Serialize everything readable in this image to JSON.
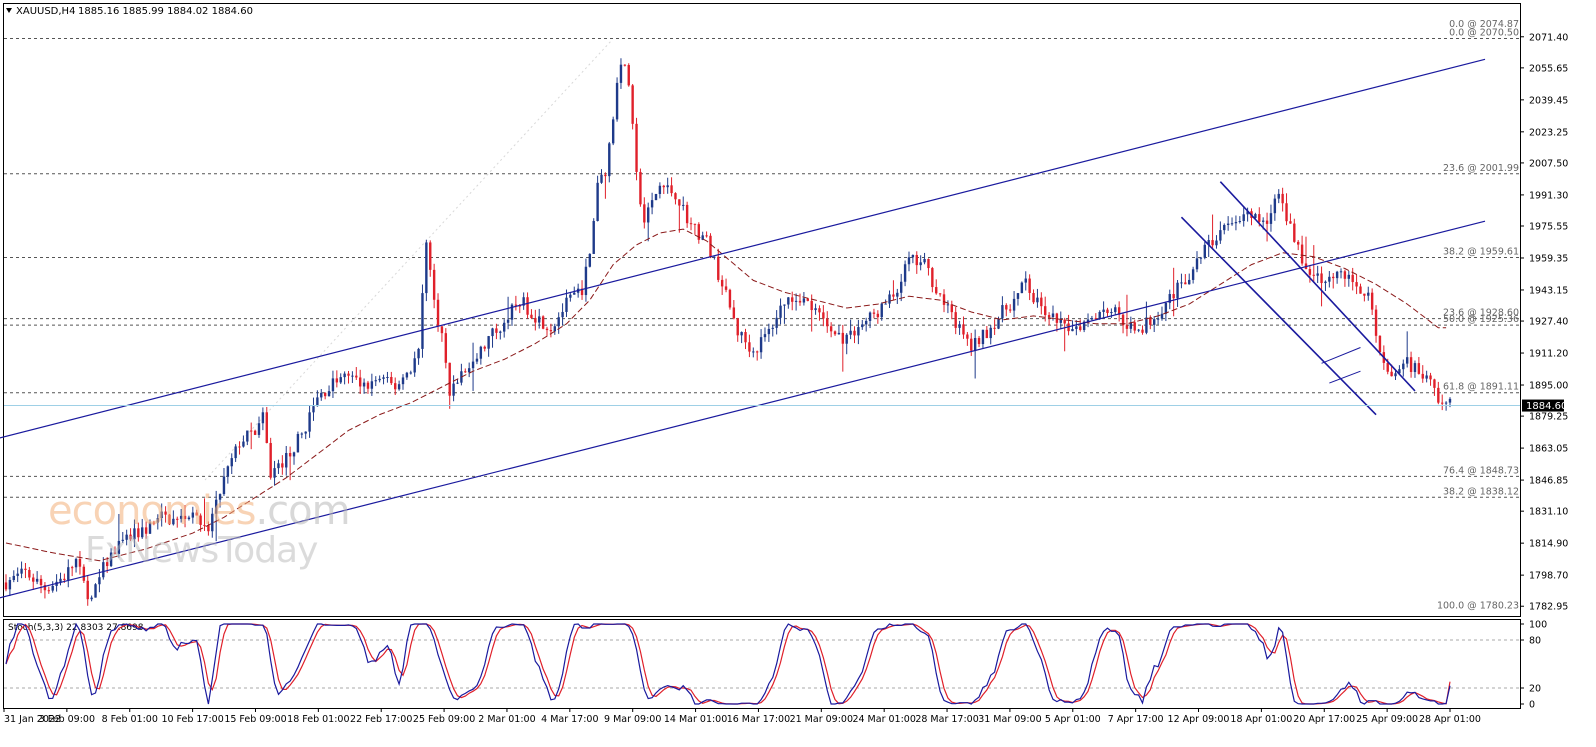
{
  "header": {
    "symbol": "XAUUSD,H4",
    "ohlc": "1885.16 1885.99 1884.02 1884.60"
  },
  "current_price": {
    "label": "1884.60",
    "value": 1884.6
  },
  "watermark": {
    "part1": "econo",
    "part2": "mies",
    "part3": ".com",
    "sub": "FxNewsToday"
  },
  "colors": {
    "bull_candle": "#1e3a8a",
    "bear_candle": "#e0202a",
    "channel_line": "#1a1a9e",
    "moving_average": "#8b1a1a",
    "stoch_main": "#1a1a9e",
    "stoch_signal": "#e0202a",
    "price_line": "#9ed0e6",
    "grid_dashed": "#555555"
  },
  "chart_data": {
    "type": "candlestick",
    "symbol": "XAUUSD",
    "timeframe": "H4",
    "y_range": [
      1778,
      2088
    ],
    "y_ticks": [
      {
        "value": 2071.4,
        "label": "2071.40"
      },
      {
        "value": 2055.65,
        "label": "2055.65"
      },
      {
        "value": 2039.45,
        "label": "2039.45"
      },
      {
        "value": 2023.25,
        "label": "2023.25"
      },
      {
        "value": 2007.5,
        "label": "2007.50"
      },
      {
        "value": 1991.3,
        "label": "1991.30"
      },
      {
        "value": 1975.55,
        "label": "1975.55"
      },
      {
        "value": 1959.35,
        "label": "1959.35"
      },
      {
        "value": 1943.15,
        "label": "1943.15"
      },
      {
        "value": 1927.4,
        "label": "1927.40"
      },
      {
        "value": 1911.2,
        "label": "1911.20"
      },
      {
        "value": 1895.0,
        "label": "1895.00"
      },
      {
        "value": 1879.25,
        "label": "1879.25"
      },
      {
        "value": 1863.05,
        "label": "1863.05"
      },
      {
        "value": 1846.85,
        "label": "1846.85"
      },
      {
        "value": 1831.1,
        "label": "1831.10"
      },
      {
        "value": 1814.9,
        "label": "1814.90"
      },
      {
        "value": 1798.7,
        "label": "1798.70"
      },
      {
        "value": 1782.95,
        "label": "1782.95"
      }
    ],
    "x_labels": [
      "31 Jan 2022",
      "3 Feb 09:00",
      "8 Feb 01:00",
      "10 Feb 17:00",
      "15 Feb 09:00",
      "18 Feb 01:00",
      "22 Feb 17:00",
      "25 Feb 09:00",
      "2 Mar 01:00",
      "4 Mar 17:00",
      "9 Mar 09:00",
      "14 Mar 01:00",
      "16 Mar 17:00",
      "21 Mar 09:00",
      "24 Mar 01:00",
      "28 Mar 17:00",
      "31 Mar 09:00",
      "5 Apr 01:00",
      "7 Apr 17:00",
      "12 Apr 09:00",
      "18 Apr 01:00",
      "20 Apr 17:00",
      "25 Apr 09:00",
      "28 Apr 01:00"
    ],
    "fib_levels": [
      {
        "label": "0.0 @ 2074.87",
        "value": 2074.87,
        "dotted_line": false
      },
      {
        "label": "0.0 @ 2070.50",
        "value": 2070.5,
        "dotted_line": true
      },
      {
        "label": "23.6 @ 2001.99",
        "value": 2001.99,
        "dotted_line": true
      },
      {
        "label": "38.2 @ 1959.61",
        "value": 1959.61,
        "dotted_line": true
      },
      {
        "label": "23.6 @ 1928.60",
        "value": 1928.6,
        "dotted_line": true
      },
      {
        "label": "50.0 @ 1925.36",
        "value": 1925.36,
        "dotted_line": true
      },
      {
        "label": "61.8 @ 1891.11",
        "value": 1891.11,
        "dotted_line": true
      },
      {
        "label": "76.4 @ 1848.73",
        "value": 1848.73,
        "dotted_line": true
      },
      {
        "label": "38.2 @ 1838.12",
        "value": 1838.12,
        "dotted_line": true
      },
      {
        "label": "100.0 @ 1780.23",
        "value": 1780.23,
        "dotted_line": false
      }
    ],
    "path": [
      [
        0,
        1795
      ],
      [
        5,
        1800
      ],
      [
        10,
        1792
      ],
      [
        15,
        1798
      ],
      [
        18,
        1806
      ],
      [
        20,
        1794
      ],
      [
        22,
        1786
      ],
      [
        25,
        1802
      ],
      [
        28,
        1812
      ],
      [
        32,
        1818
      ],
      [
        36,
        1822
      ],
      [
        40,
        1828
      ],
      [
        44,
        1826
      ],
      [
        48,
        1832
      ],
      [
        52,
        1822
      ],
      [
        56,
        1847
      ],
      [
        60,
        1866
      ],
      [
        64,
        1872
      ],
      [
        66,
        1878
      ],
      [
        68,
        1850
      ],
      [
        72,
        1858
      ],
      [
        76,
        1870
      ],
      [
        80,
        1888
      ],
      [
        84,
        1896
      ],
      [
        88,
        1900
      ],
      [
        92,
        1894
      ],
      [
        96,
        1898
      ],
      [
        100,
        1894
      ],
      [
        104,
        1904
      ],
      [
        106,
        1912
      ],
      [
        108,
        1970
      ],
      [
        110,
        1936
      ],
      [
        112,
        1920
      ],
      [
        114,
        1890
      ],
      [
        116,
        1898
      ],
      [
        120,
        1906
      ],
      [
        124,
        1918
      ],
      [
        128,
        1928
      ],
      [
        132,
        1938
      ],
      [
        136,
        1930
      ],
      [
        140,
        1924
      ],
      [
        144,
        1936
      ],
      [
        148,
        1944
      ],
      [
        150,
        1960
      ],
      [
        152,
        1998
      ],
      [
        154,
        2004
      ],
      [
        156,
        2030
      ],
      [
        157,
        2050
      ],
      [
        158,
        2060
      ],
      [
        160,
        2048
      ],
      [
        162,
        2000
      ],
      [
        164,
        1978
      ],
      [
        168,
        1996
      ],
      [
        172,
        1992
      ],
      [
        176,
        1976
      ],
      [
        180,
        1968
      ],
      [
        184,
        1946
      ],
      [
        188,
        1922
      ],
      [
        192,
        1912
      ],
      [
        196,
        1922
      ],
      [
        200,
        1938
      ],
      [
        204,
        1940
      ],
      [
        208,
        1932
      ],
      [
        212,
        1922
      ],
      [
        216,
        1918
      ],
      [
        220,
        1926
      ],
      [
        224,
        1932
      ],
      [
        228,
        1940
      ],
      [
        232,
        1958
      ],
      [
        236,
        1956
      ],
      [
        240,
        1940
      ],
      [
        244,
        1926
      ],
      [
        248,
        1914
      ],
      [
        252,
        1922
      ],
      [
        256,
        1932
      ],
      [
        260,
        1940
      ],
      [
        262,
        1948
      ],
      [
        264,
        1938
      ],
      [
        268,
        1930
      ],
      [
        272,
        1924
      ],
      [
        276,
        1926
      ],
      [
        280,
        1932
      ],
      [
        284,
        1934
      ],
      [
        288,
        1926
      ],
      [
        292,
        1924
      ],
      [
        296,
        1932
      ],
      [
        300,
        1942
      ],
      [
        304,
        1950
      ],
      [
        308,
        1964
      ],
      [
        312,
        1972
      ],
      [
        316,
        1980
      ],
      [
        320,
        1980
      ],
      [
        324,
        1976
      ],
      [
        326,
        1992
      ],
      [
        328,
        1986
      ],
      [
        330,
        1976
      ],
      [
        332,
        1966
      ],
      [
        334,
        1952
      ],
      [
        338,
        1950
      ],
      [
        342,
        1952
      ],
      [
        346,
        1948
      ],
      [
        350,
        1940
      ],
      [
        352,
        1920
      ],
      [
        354,
        1908
      ],
      [
        356,
        1898
      ],
      [
        358,
        1900
      ],
      [
        360,
        1906
      ],
      [
        362,
        1904
      ],
      [
        364,
        1900
      ],
      [
        366,
        1896
      ],
      [
        368,
        1888
      ],
      [
        370,
        1885
      ]
    ],
    "moving_average": [
      [
        0,
        1815
      ],
      [
        12,
        1810
      ],
      [
        24,
        1806
      ],
      [
        36,
        1812
      ],
      [
        48,
        1820
      ],
      [
        56,
        1828
      ],
      [
        64,
        1838
      ],
      [
        72,
        1848
      ],
      [
        80,
        1860
      ],
      [
        88,
        1872
      ],
      [
        96,
        1880
      ],
      [
        104,
        1886
      ],
      [
        112,
        1894
      ],
      [
        120,
        1902
      ],
      [
        128,
        1908
      ],
      [
        136,
        1916
      ],
      [
        144,
        1926
      ],
      [
        150,
        1938
      ],
      [
        156,
        1956
      ],
      [
        162,
        1966
      ],
      [
        168,
        1972
      ],
      [
        174,
        1974
      ],
      [
        180,
        1968
      ],
      [
        186,
        1958
      ],
      [
        192,
        1948
      ],
      [
        200,
        1942
      ],
      [
        208,
        1938
      ],
      [
        216,
        1934
      ],
      [
        224,
        1936
      ],
      [
        232,
        1940
      ],
      [
        240,
        1938
      ],
      [
        248,
        1932
      ],
      [
        256,
        1928
      ],
      [
        264,
        1930
      ],
      [
        272,
        1928
      ],
      [
        280,
        1926
      ],
      [
        288,
        1926
      ],
      [
        296,
        1930
      ],
      [
        304,
        1936
      ],
      [
        312,
        1946
      ],
      [
        320,
        1956
      ],
      [
        328,
        1962
      ],
      [
        336,
        1960
      ],
      [
        344,
        1954
      ],
      [
        352,
        1946
      ],
      [
        360,
        1936
      ],
      [
        368,
        1924
      ]
    ],
    "stochastic": {
      "label": "Stoch(5,3,3) 22.8303 27.8698",
      "params": "5,3,3",
      "main_value": 22.8303,
      "signal_value": 27.8698,
      "y_range": [
        0,
        100
      ],
      "y_ticks": [
        {
          "value": 100,
          "label": "100"
        },
        {
          "value": 80,
          "label": "80"
        },
        {
          "value": 20,
          "label": "20"
        },
        {
          "value": 0,
          "label": "0"
        }
      ]
    },
    "grid": false,
    "legend": "none"
  }
}
